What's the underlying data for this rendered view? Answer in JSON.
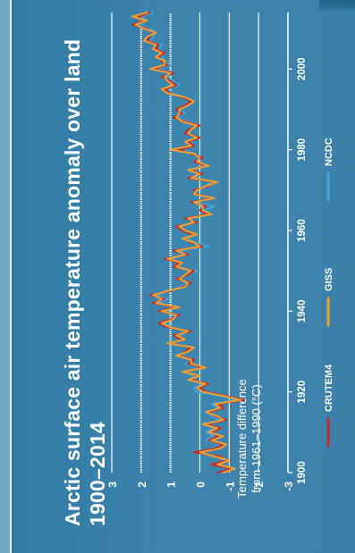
{
  "chart_data": {
    "type": "line",
    "title": "Arctic surface air temperature anomaly over land",
    "subtitle": "1900–2014",
    "ylabel_line1": "Temperature difference",
    "ylabel_line2": "from 1961–1990 (°C)",
    "xlabel": "",
    "xlim": [
      1900,
      2014
    ],
    "ylim": [
      -3,
      3
    ],
    "x_ticks": [
      1900,
      1920,
      1940,
      1960,
      1980,
      2000
    ],
    "y_ticks": [
      -3,
      -2,
      -1,
      0,
      1,
      2,
      3
    ],
    "grid": true,
    "legend_position": "bottom",
    "series": [
      {
        "name": "CRUTEM4",
        "color": "#c8282a",
        "x": [
          1900,
          1901,
          1902,
          1903,
          1904,
          1905,
          1906,
          1907,
          1908,
          1909,
          1910,
          1911,
          1912,
          1913,
          1914,
          1915,
          1916,
          1917,
          1918,
          1919,
          1920,
          1921,
          1922,
          1923,
          1924,
          1925,
          1926,
          1927,
          1928,
          1929,
          1930,
          1931,
          1932,
          1933,
          1934,
          1935,
          1936,
          1937,
          1938,
          1939,
          1940,
          1941,
          1942,
          1943,
          1944,
          1945,
          1946,
          1947,
          1948,
          1949,
          1950,
          1951,
          1952,
          1953,
          1954,
          1955,
          1956,
          1957,
          1958,
          1959,
          1960,
          1961,
          1962,
          1963,
          1964,
          1965,
          1966,
          1967,
          1968,
          1969,
          1970,
          1971,
          1972,
          1973,
          1974,
          1975,
          1976,
          1977,
          1978,
          1979,
          1980,
          1981,
          1982,
          1983,
          1984,
          1985,
          1986,
          1987,
          1988,
          1989,
          1990,
          1991,
          1992,
          1993,
          1994,
          1995,
          1996,
          1997,
          1998,
          1999,
          2000,
          2001,
          2002,
          2003,
          2004,
          2005,
          2006,
          2007,
          2008,
          2009,
          2010,
          2011,
          2012,
          2013,
          2014
        ],
        "y": [
          -0.6,
          -1.1,
          -0.4,
          -0.9,
          -0.7,
          0.2,
          -0.5,
          -0.8,
          -0.3,
          -0.6,
          -0.4,
          -0.7,
          -0.2,
          -0.9,
          -0.5,
          -0.3,
          -0.8,
          -0.6,
          -1.5,
          -0.9,
          -0.2,
          0.0,
          -0.3,
          0.3,
          0.1,
          0.5,
          -0.1,
          0.4,
          0.2,
          0.7,
          0.5,
          0.3,
          1.0,
          0.6,
          0.9,
          0.3,
          1.1,
          1.4,
          1.0,
          0.7,
          1.4,
          0.8,
          1.6,
          1.2,
          1.7,
          1.0,
          0.6,
          0.3,
          0.8,
          0.4,
          0.2,
          0.9,
          0.7,
          1.2,
          0.4,
          0.9,
          -0.1,
          0.3,
          0.5,
          0.2,
          0.6,
          0.8,
          0.1,
          0.5,
          -0.3,
          0.0,
          -0.2,
          0.3,
          -0.4,
          0.1,
          0.2,
          -0.3,
          -0.5,
          0.4,
          -0.1,
          0.3,
          -0.2,
          0.2,
          -0.1,
          0.3,
          0.7,
          0.2,
          0.4,
          0.0,
          0.5,
          0.4,
          0.0,
          0.5,
          0.9,
          0.6,
          0.8,
          0.5,
          0.3,
          0.6,
          1.0,
          1.2,
          0.8,
          1.0,
          1.3,
          0.9,
          1.6,
          1.1,
          1.3,
          1.4,
          1.2,
          1.5,
          1.4,
          1.8,
          1.7,
          1.6,
          1.8,
          2.3,
          1.9,
          2.1,
          1.7
        ]
      },
      {
        "name": "GISS",
        "color": "#f0a030",
        "x": [
          1900,
          1901,
          1902,
          1903,
          1904,
          1905,
          1906,
          1907,
          1908,
          1909,
          1910,
          1911,
          1912,
          1913,
          1914,
          1915,
          1916,
          1917,
          1918,
          1919,
          1920,
          1921,
          1922,
          1923,
          1924,
          1925,
          1926,
          1927,
          1928,
          1929,
          1930,
          1931,
          1932,
          1933,
          1934,
          1935,
          1936,
          1937,
          1938,
          1939,
          1940,
          1941,
          1942,
          1943,
          1944,
          1945,
          1946,
          1947,
          1948,
          1949,
          1950,
          1951,
          1952,
          1953,
          1954,
          1955,
          1956,
          1957,
          1958,
          1959,
          1960,
          1961,
          1962,
          1963,
          1964,
          1965,
          1966,
          1967,
          1968,
          1969,
          1970,
          1971,
          1972,
          1973,
          1974,
          1975,
          1976,
          1977,
          1978,
          1979,
          1980,
          1981,
          1982,
          1983,
          1984,
          1985,
          1986,
          1987,
          1988,
          1989,
          1990,
          1991,
          1992,
          1993,
          1994,
          1995,
          1996,
          1997,
          1998,
          1999,
          2000,
          2001,
          2002,
          2003,
          2004,
          2005,
          2006,
          2007,
          2008,
          2009,
          2010,
          2011,
          2012,
          2013,
          2014
        ],
        "y": [
          -0.8,
          -1.2,
          -0.6,
          -1.0,
          -0.5,
          0.0,
          -0.7,
          -0.9,
          -0.4,
          -0.8,
          -0.3,
          -0.6,
          -0.1,
          -0.8,
          -0.6,
          -0.2,
          -0.7,
          -0.5,
          -1.4,
          -0.8,
          -0.1,
          0.1,
          -0.2,
          0.4,
          0.0,
          0.6,
          -0.2,
          0.3,
          0.3,
          0.8,
          0.4,
          0.2,
          1.1,
          0.5,
          0.8,
          0.4,
          1.0,
          1.3,
          0.9,
          0.8,
          1.3,
          0.7,
          1.5,
          1.3,
          1.6,
          1.1,
          0.5,
          0.4,
          0.7,
          0.5,
          0.3,
          0.8,
          0.6,
          1.1,
          0.5,
          0.8,
          0.0,
          0.2,
          0.6,
          0.1,
          0.5,
          0.7,
          0.2,
          0.4,
          -0.4,
          -0.1,
          -0.1,
          0.2,
          -0.5,
          0.2,
          0.1,
          -0.2,
          -0.6,
          0.3,
          0.0,
          0.4,
          -0.3,
          0.1,
          0.0,
          0.2,
          1.0,
          0.3,
          0.5,
          0.1,
          0.4,
          0.3,
          0.1,
          0.6,
          0.8,
          0.7,
          0.7,
          0.4,
          0.2,
          0.5,
          1.1,
          1.3,
          0.9,
          1.1,
          1.2,
          1.0,
          1.7,
          1.2,
          1.2,
          1.5,
          1.3,
          1.6,
          1.5,
          1.9,
          1.8,
          1.5,
          1.9,
          2.2,
          1.8,
          2.3,
          1.8
        ]
      },
      {
        "name": "NCDC",
        "color": "#3ba6e0",
        "x": [
          1900,
          1901,
          1902,
          1903,
          1904,
          1905,
          1906,
          1907,
          1908,
          1909,
          1910,
          1911,
          1912,
          1913,
          1914,
          1915,
          1916,
          1917,
          1918,
          1919,
          1920,
          1921,
          1922,
          1923,
          1924,
          1925,
          1926,
          1927,
          1928,
          1929,
          1930,
          1931,
          1932,
          1933,
          1934,
          1935,
          1936,
          1937,
          1938,
          1939,
          1940,
          1941,
          1942,
          1943,
          1944,
          1945,
          1946,
          1947,
          1948,
          1949,
          1950,
          1951,
          1952,
          1953,
          1954,
          1955,
          1956,
          1957,
          1958,
          1959,
          1960,
          1961,
          1962,
          1963,
          1964,
          1965,
          1966,
          1967,
          1968,
          1969,
          1970,
          1971,
          1972,
          1973,
          1974,
          1975,
          1976,
          1977,
          1978,
          1979,
          1980,
          1981,
          1982,
          1983,
          1984,
          1985,
          1986,
          1987,
          1988,
          1989,
          1990,
          1991,
          1992,
          1993,
          1994,
          1995,
          1996,
          1997,
          1998,
          1999,
          2000,
          2001,
          2002,
          2003,
          2004,
          2005,
          2006,
          2007,
          2008,
          2009,
          2010,
          2011,
          2012,
          2013,
          2014
        ],
        "y": [
          -0.7,
          -1.0,
          -0.5,
          -0.8,
          -0.6,
          0.1,
          -0.4,
          -0.7,
          -0.2,
          -0.5,
          -0.2,
          -0.5,
          -0.1,
          -0.7,
          -0.4,
          -0.3,
          -0.6,
          -0.4,
          -1.3,
          -0.7,
          0.1,
          0.2,
          -0.1,
          0.3,
          0.2,
          0.5,
          0.0,
          0.5,
          0.2,
          0.6,
          0.5,
          0.3,
          0.9,
          0.6,
          0.8,
          0.3,
          1.0,
          1.2,
          1.0,
          0.7,
          1.2,
          0.8,
          1.4,
          1.1,
          1.5,
          1.0,
          0.7,
          0.4,
          0.8,
          0.4,
          0.1,
          0.8,
          0.7,
          1.0,
          0.4,
          0.7,
          -0.3,
          0.2,
          0.4,
          0.2,
          0.5,
          0.7,
          0.1,
          0.4,
          -0.2,
          -0.2,
          -0.5,
          0.2,
          -0.3,
          0.1,
          0.1,
          -0.2,
          -0.4,
          0.2,
          -0.1,
          0.2,
          -0.1,
          0.1,
          0.0,
          0.2,
          0.6,
          0.2,
          0.3,
          0.1,
          0.4,
          0.3,
          0.0,
          0.4,
          0.8,
          0.5,
          0.7,
          0.4,
          0.3,
          0.5,
          0.9,
          1.1,
          0.7,
          0.9,
          1.2,
          0.9,
          1.5,
          1.0,
          1.2,
          1.3,
          1.2,
          1.4,
          1.3,
          1.7,
          1.6,
          1.5,
          1.7,
          2.1,
          1.8,
          2.0,
          1.6
        ]
      }
    ]
  },
  "colors": {
    "background": "#3a7fa6",
    "text": "#ffffff",
    "gridline": "#ffffff",
    "axis": "#ffffff"
  }
}
